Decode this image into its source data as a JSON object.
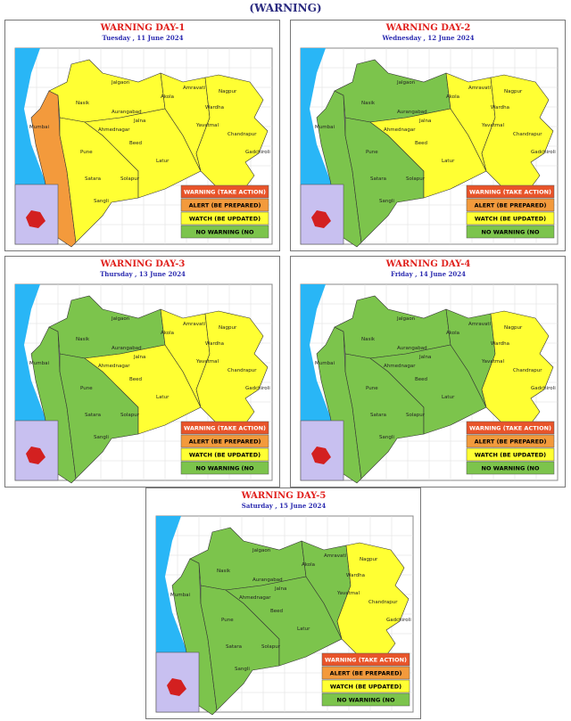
{
  "header": {
    "title": "(WARNING)"
  },
  "panels": [
    {
      "title": "WARNING DAY-1",
      "date": "Tuesday ,  11 June 2024"
    },
    {
      "title": "WARNING DAY-2",
      "date": "Wednesday ,  12 June 2024"
    },
    {
      "title": "WARNING DAY-3",
      "date": "Thursday ,  13 June 2024"
    },
    {
      "title": "WARNING DAY-4",
      "date": "Friday ,  14 June 2024"
    },
    {
      "title": "WARNING DAY-5",
      "date": "Saturday ,  15 June 2024"
    }
  ],
  "legend": [
    "WARNING (TAKE ACTION)",
    "ALERT (BE PREPARED)",
    "WATCH (BE UPDATED)",
    "NO WARNING (NO"
  ],
  "places": [
    "Mumbai",
    "Nasik",
    "Jalgaon",
    "Akola",
    "Amravati",
    "Nagpur",
    "Wardha",
    "Yavatmal",
    "Chandrapur",
    "Ahmednagar",
    "Aurangabad",
    "Jalna",
    "Beed",
    "Pune",
    "Satara",
    "Solapur",
    "Sangli",
    "Latur",
    "Gadchiroli"
  ]
}
